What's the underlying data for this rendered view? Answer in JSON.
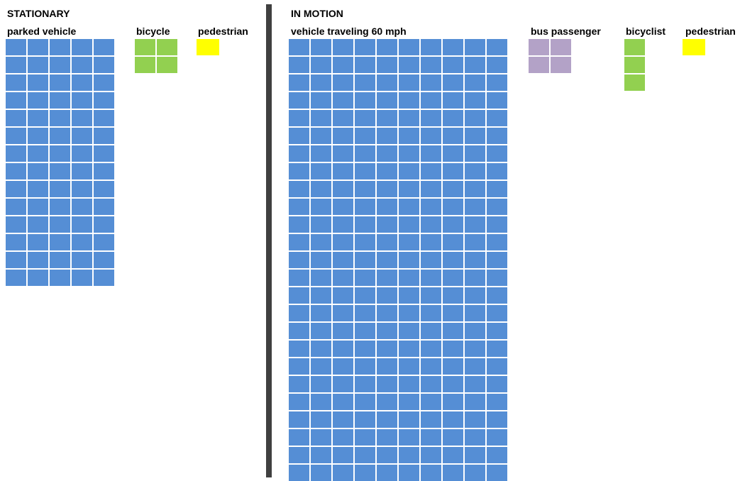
{
  "chart_data": {
    "type": "waffle",
    "sections": [
      {
        "title": "STATIONARY",
        "groups": [
          {
            "label": "parked vehicle",
            "value": 70,
            "color": "#558ED5"
          },
          {
            "label": "bicycle",
            "value": 4,
            "color": "#92D050"
          },
          {
            "label": "pedestrian",
            "value": 1,
            "color": "#FFFF00"
          }
        ]
      },
      {
        "title": "IN MOTION",
        "groups": [
          {
            "label": "vehicle traveling 60 mph",
            "value": 250,
            "color": "#558ED5"
          },
          {
            "label": "bus passenger",
            "value": 4,
            "color": "#B3A2C7"
          },
          {
            "label": "bicyclist",
            "value": 3,
            "color": "#92D050"
          },
          {
            "label": "pedestrian",
            "value": 1,
            "color": "#FFFF00"
          }
        ]
      }
    ]
  }
}
